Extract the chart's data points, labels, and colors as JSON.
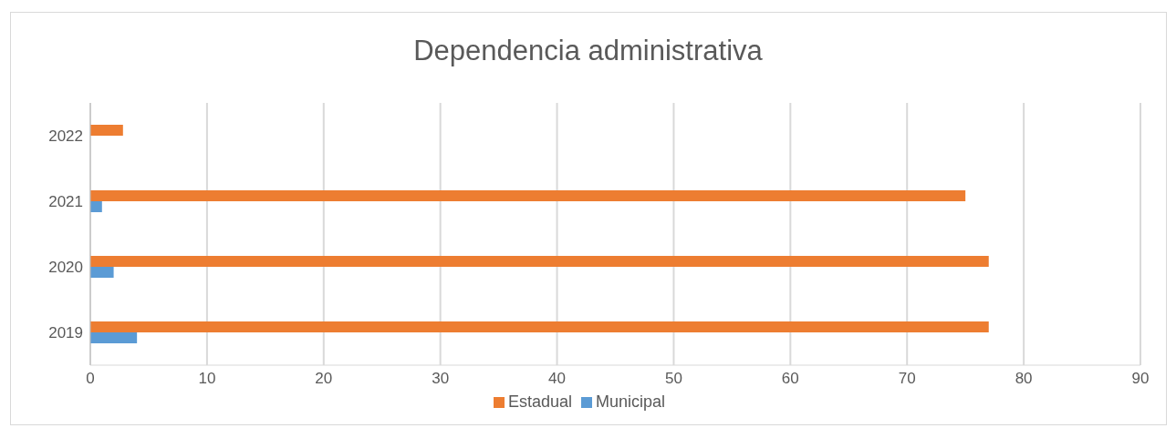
{
  "chart_data": {
    "type": "bar",
    "orientation": "horizontal",
    "title": "Dependencia administrativa",
    "categories": [
      "2022",
      "2021",
      "2020",
      "2019"
    ],
    "series": [
      {
        "name": "Estadual",
        "color": "#ed7d31",
        "values": [
          2.8,
          75,
          77,
          77
        ]
      },
      {
        "name": "Municipal",
        "color": "#5b9bd5",
        "values": [
          null,
          1,
          2,
          4
        ]
      }
    ],
    "xlim": [
      0,
      90
    ],
    "xticks": [
      0,
      10,
      20,
      30,
      40,
      50,
      60,
      70,
      80,
      90
    ],
    "grid": "x",
    "legend": "bottom"
  }
}
